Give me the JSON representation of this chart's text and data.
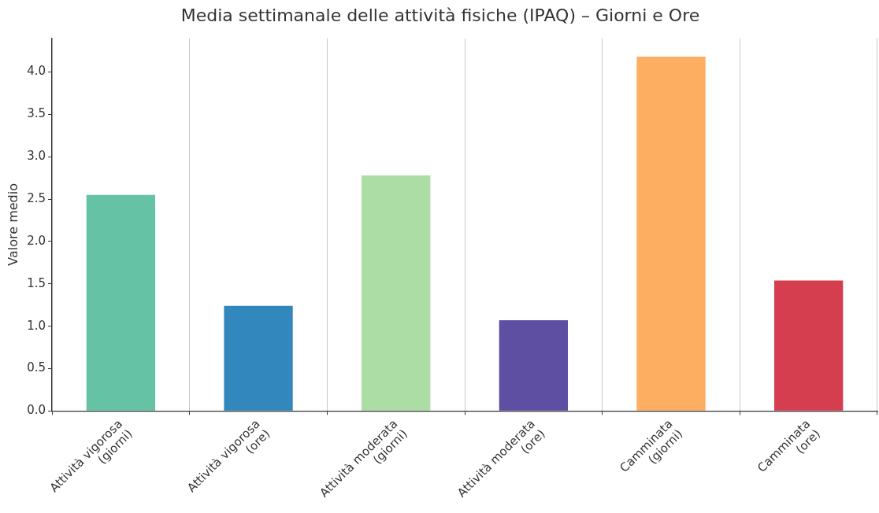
{
  "chart_data": {
    "type": "bar",
    "title": "Media settimanale delle attività fisiche (IPAQ) – Giorni e Ore",
    "ylabel": "Valore medio",
    "categories": [
      "Attività vigorosa\n(giorni)",
      "Attività vigorosa\n(ore)",
      "Attività moderata\n(giorni)",
      "Attività moderata\n(ore)",
      "Camminata\n(giorni)",
      "Camminata\n(ore)"
    ],
    "values": [
      2.55,
      1.24,
      2.78,
      1.07,
      4.18,
      1.54
    ],
    "colors": [
      "#66c2a5",
      "#3288bd",
      "#abdda4",
      "#5e4fa2",
      "#fdae61",
      "#d53e4f"
    ],
    "ylim": [
      0,
      4.4
    ],
    "yticks": [
      {
        "value": 0,
        "label": "0.0"
      },
      0.5,
      {
        "value": 1,
        "label": "1.0"
      },
      1.5,
      {
        "value": 2,
        "label": "2.0"
      },
      2.5,
      {
        "value": 3,
        "label": "3.0"
      },
      3.5,
      {
        "value": 4,
        "label": "4.0"
      }
    ],
    "grid": "x",
    "legend": false
  }
}
